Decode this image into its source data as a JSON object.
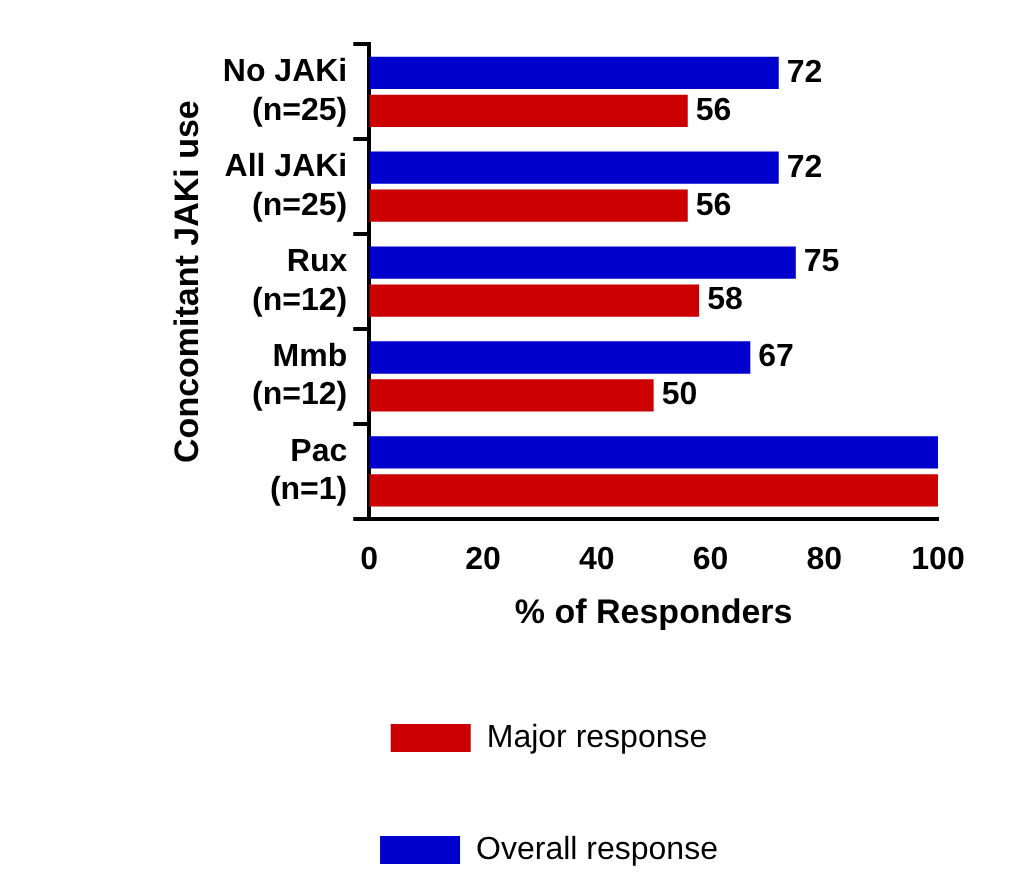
{
  "chart_data": {
    "type": "bar",
    "orientation": "horizontal",
    "xlabel": "% of Responders",
    "ylabel": "Concomitant JAKi use",
    "categories": [
      "No JAKi\n(n=25)",
      "All JAKi\n(n=25)",
      "Rux\n(n=12)",
      "Mmb\n(n=12)",
      "Pac\n(n=1)"
    ],
    "series": [
      {
        "name": "Overall response",
        "color": "#0000cc",
        "values": [
          72,
          72,
          75,
          67,
          100
        ],
        "value_labels": [
          "72",
          "72",
          "75",
          "67",
          null
        ]
      },
      {
        "name": "Major response",
        "color": "#cc0000",
        "values": [
          56,
          56,
          58,
          50,
          100
        ],
        "value_labels": [
          "56",
          "56",
          "58",
          "50",
          null
        ]
      }
    ],
    "xlim": [
      0,
      100
    ],
    "xticks": [
      0,
      20,
      40,
      60,
      80,
      100
    ],
    "grid": false,
    "legend": "bottom"
  }
}
